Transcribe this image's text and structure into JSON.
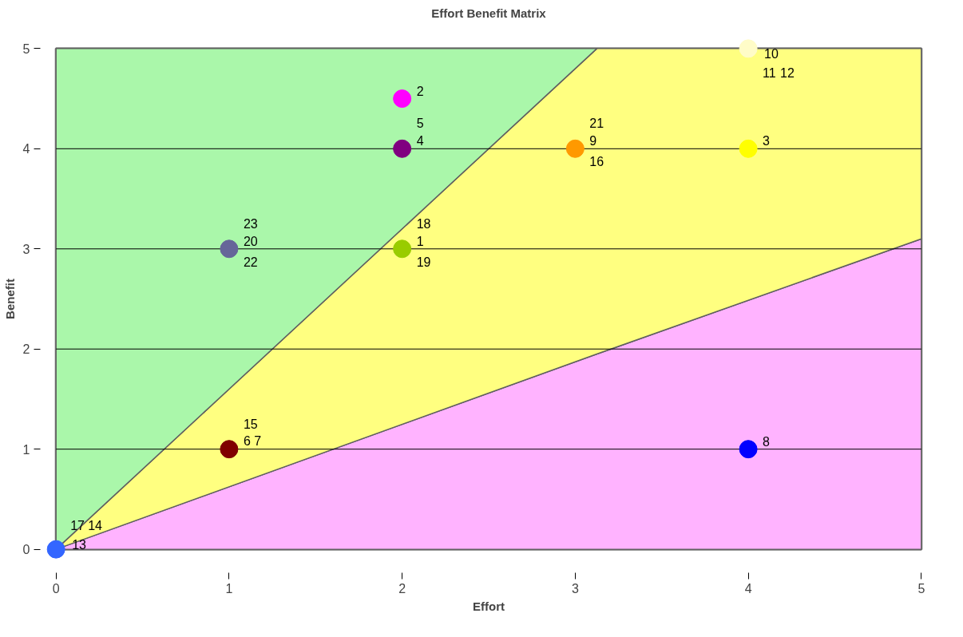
{
  "chart_data": {
    "type": "scatter",
    "title": "Effort Benefit Matrix",
    "xlabel": "Effort",
    "ylabel": "Benefit",
    "xlim": [
      0,
      5
    ],
    "ylim": [
      0,
      5
    ],
    "xticks": [
      0,
      1,
      2,
      3,
      4,
      5
    ],
    "yticks": [
      0,
      1,
      2,
      3,
      4,
      5
    ],
    "grid": "y",
    "marker": "circle",
    "stacked": true,
    "series": [
      {
        "type": "area",
        "marker": "none",
        "color": "#ffb3ff",
        "x": [
          0,
          3.125,
          5
        ],
        "values": [
          0,
          1.95,
          3.1
        ]
      },
      {
        "type": "area",
        "marker": "none",
        "color": "#ffff80",
        "x": [
          0,
          3.125,
          5
        ],
        "values": [
          0,
          3.05,
          1.9
        ]
      },
      {
        "type": "area",
        "marker": "none",
        "color": "#aaf7aa",
        "x": [
          0,
          3.125
        ],
        "values": [
          5,
          0
        ]
      },
      {
        "color": "#99cc00",
        "x": [
          2
        ],
        "values": [
          3
        ]
      },
      {
        "color": "#ff00ff",
        "x": [
          2
        ],
        "values": [
          4.5
        ]
      },
      {
        "color": "#ffff00",
        "x": [
          4
        ],
        "values": [
          4
        ]
      },
      {
        "color": "#800080",
        "x": [
          2
        ],
        "values": [
          4
        ]
      },
      {
        "color": "#800000",
        "x": [
          1
        ],
        "values": [
          1
        ]
      },
      {
        "color": "#0000ff",
        "x": [
          4
        ],
        "values": [
          1
        ]
      },
      {
        "color": "#ff9900",
        "x": [
          3
        ],
        "values": [
          4
        ]
      },
      {
        "color": "#fffcc8",
        "x": [
          4
        ],
        "values": [
          5
        ]
      },
      {
        "color": "#3366ff",
        "x": [
          0
        ],
        "values": [
          0
        ]
      },
      {
        "color": "#666699",
        "x": [
          1
        ],
        "values": [
          3
        ]
      }
    ],
    "annotations": [
      {
        "text": "1",
        "x": 2,
        "y": 3
      },
      {
        "text": "18",
        "x": 2,
        "y": 3
      },
      {
        "text": "19",
        "x": 2,
        "y": 3
      },
      {
        "text": "2",
        "x": 2,
        "y": 4.5
      },
      {
        "text": "3",
        "x": 4,
        "y": 4
      },
      {
        "text": "4",
        "x": 2,
        "y": 4
      },
      {
        "text": "5",
        "x": 2,
        "y": 4
      },
      {
        "text": "6 7",
        "x": 1,
        "y": 1
      },
      {
        "text": "15",
        "x": 1,
        "y": 1
      },
      {
        "text": "8",
        "x": 4,
        "y": 1
      },
      {
        "text": "9",
        "x": 3,
        "y": 4
      },
      {
        "text": "21",
        "x": 3,
        "y": 4
      },
      {
        "text": "16",
        "x": 3,
        "y": 4
      },
      {
        "text": "10",
        "x": 4,
        "y": 5
      },
      {
        "text": "11",
        "x": 4,
        "y": 5
      },
      {
        "text": "12",
        "x": 4,
        "y": 5
      },
      {
        "text": "13",
        "x": 0,
        "y": 0
      },
      {
        "text": "17",
        "x": 0,
        "y": 0
      },
      {
        "text": "14",
        "x": 0,
        "y": 0
      },
      {
        "text": "20",
        "x": 1,
        "y": 3
      },
      {
        "text": "23",
        "x": 1,
        "y": 3
      },
      {
        "text": "22",
        "x": 1,
        "y": 3
      }
    ]
  }
}
